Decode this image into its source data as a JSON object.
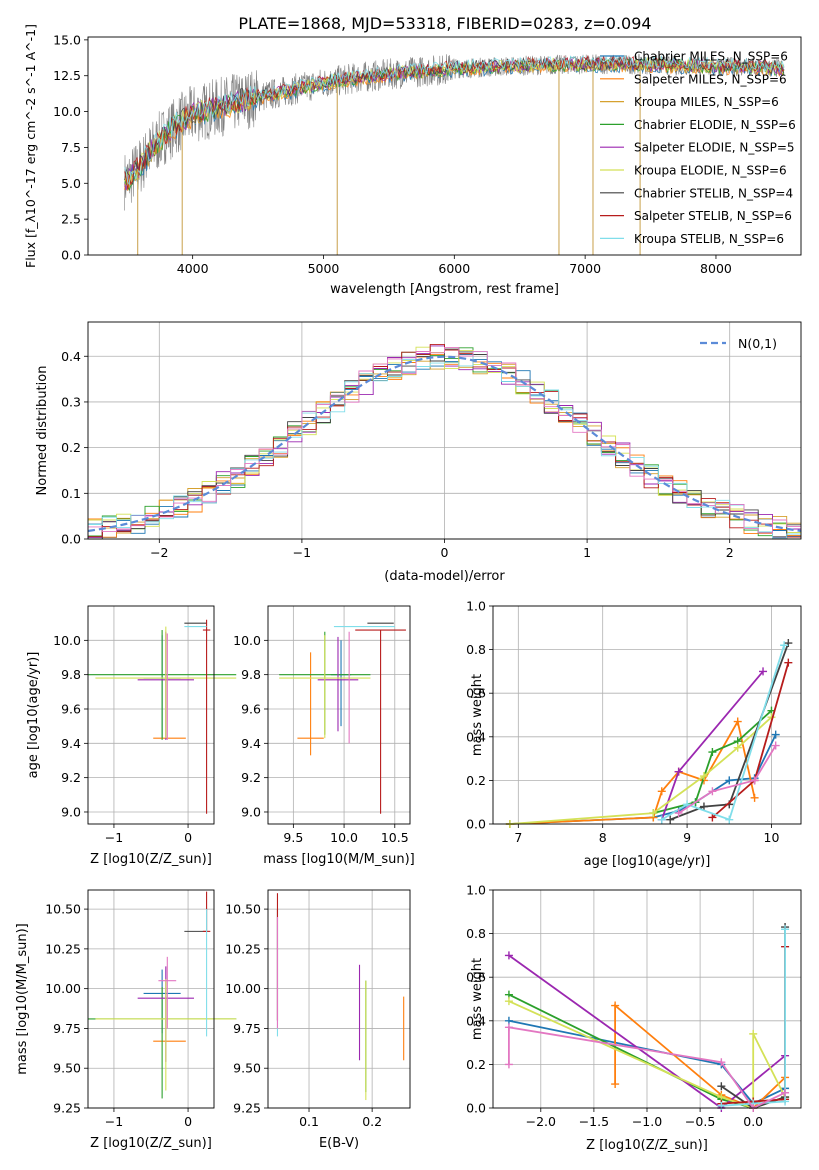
{
  "figure_title": "PLATE=1868, MJD=53318, FIBERID=0283, z=0.094",
  "colors": {
    "chabrier_miles": "#1f77b4",
    "salpeter_miles": "#ff7f0e",
    "kroupa_miles": "#d6a12f",
    "chabrier_elodie": "#2ca02c",
    "salpeter_elodie": "#9b27b0",
    "kroupa_elodie": "#d4e157",
    "chabrier_stelib": "#424242",
    "salpeter_stelib": "#b71c1c",
    "kroupa_stelib": "#80deea",
    "pink": "#e377c2",
    "blue_line": "#5b8bd8",
    "gray_spec": "#808080"
  },
  "chart_data": [
    {
      "id": "spectrum",
      "type": "line",
      "xlabel": "wavelength [Angstrom, rest frame]",
      "ylabel": "Flux [f_λ10^-17 erg cm^-2 s^-1 A^-1]",
      "xlim": [
        3200,
        8650
      ],
      "ylim": [
        0,
        15.2
      ],
      "xticks": [
        4000,
        5000,
        6000,
        7000,
        8000
      ],
      "yticks": [
        0.0,
        2.5,
        5.0,
        7.5,
        10.0,
        12.5,
        15.0
      ],
      "grid": false,
      "legend_position": "right",
      "legend": [
        {
          "label": "Chabrier MILES, N_SSP=6",
          "color": "#1f77b4"
        },
        {
          "label": "Salpeter MILES, N_SSP=6",
          "color": "#ff7f0e"
        },
        {
          "label": "Kroupa MILES, N_SSP=6",
          "color": "#d6a12f"
        },
        {
          "label": "Chabrier ELODIE, N_SSP=6",
          "color": "#2ca02c"
        },
        {
          "label": "Salpeter ELODIE, N_SSP=5",
          "color": "#9b27b0"
        },
        {
          "label": "Kroupa ELODIE, N_SSP=6",
          "color": "#d4e157"
        },
        {
          "label": "Chabrier STELIB, N_SSP=4",
          "color": "#424242"
        },
        {
          "label": "Salpeter STELIB, N_SSP=6",
          "color": "#b71c1c"
        },
        {
          "label": "Kroupa STELIB, N_SSP=6",
          "color": "#80deea"
        }
      ],
      "continuum": {
        "x": [
          3500,
          3600,
          3700,
          3800,
          3900,
          4000,
          4200,
          4400,
          4600,
          4800,
          5000,
          5300,
          5600,
          6000,
          6500,
          7000,
          7400,
          7800,
          8200,
          8500
        ],
        "y": [
          5.2,
          6.2,
          7.5,
          8.5,
          9.2,
          9.8,
          10.3,
          10.8,
          11.2,
          11.6,
          12.0,
          12.4,
          12.7,
          13.0,
          13.2,
          13.3,
          13.3,
          13.2,
          13.1,
          13.0
        ]
      },
      "dips": [
        {
          "x": 3580,
          "y": 0.0
        },
        {
          "x": 3920,
          "y": 0.0
        },
        {
          "x": 5105,
          "y": 0.0
        },
        {
          "x": 6800,
          "y": 0.0
        },
        {
          "x": 7060,
          "y": 0.0
        },
        {
          "x": 7420,
          "y": 0.0
        }
      ]
    },
    {
      "id": "residual-histogram",
      "type": "bar",
      "xlabel": "(data-model)/error",
      "ylabel": "Normed distribution",
      "xlim": [
        -2.5,
        2.5
      ],
      "ylim": [
        0,
        0.475
      ],
      "xticks": [
        -2,
        -1,
        0,
        1,
        2
      ],
      "yticks": [
        0.0,
        0.1,
        0.2,
        0.3,
        0.4
      ],
      "grid": true,
      "legend_position": "top-right",
      "legend": [
        {
          "label": "N(0,1)",
          "color": "#5b8bd8",
          "style": "dashed"
        }
      ],
      "bin_width": 0.1
    },
    {
      "id": "age-vs-Z",
      "type": "scatter",
      "xlabel": "Z [log10(Z/Z_sun)]",
      "ylabel": "age [log10(age/yr)]",
      "xlim": [
        -1.35,
        0.35
      ],
      "ylim": [
        8.93,
        10.2
      ],
      "xticks": [
        -1,
        0
      ],
      "yticks": [
        9.0,
        9.2,
        9.4,
        9.6,
        9.8,
        10.0
      ],
      "grid": true,
      "points": [
        {
          "series": "Chabrier MILES",
          "x": -0.35,
          "y": 9.78,
          "xerr": 0.25,
          "yerr": [
            0.35,
            0.25
          ],
          "color": "#1f77b4"
        },
        {
          "series": "Salpeter MILES",
          "x": -0.25,
          "y": 9.43,
          "xerr": 0.22,
          "yerr": [
            0.0,
            0.0
          ],
          "color": "#ff7f0e"
        },
        {
          "series": "Chabrier ELODIE",
          "x": -0.35,
          "y": 9.8,
          "xerr": 1.0,
          "yerr": [
            0.38,
            0.26
          ],
          "color": "#2ca02c"
        },
        {
          "series": "Salpeter ELODIE",
          "x": -0.3,
          "y": 9.77,
          "xerr": 0.38,
          "yerr": [
            0.35,
            0.28
          ],
          "color": "#9b27b0"
        },
        {
          "series": "Kroupa ELODIE",
          "x": -0.3,
          "y": 9.78,
          "xerr": 0.95,
          "yerr": [
            0.35,
            0.3
          ],
          "color": "#d4e157"
        },
        {
          "series": "Chabrier STELIB",
          "x": 0.1,
          "y": 10.1,
          "xerr": 0.15,
          "yerr": [
            0.0,
            0.0
          ],
          "color": "#424242"
        },
        {
          "series": "Salpeter STELIB",
          "x": 0.25,
          "y": 10.06,
          "xerr": 0.05,
          "yerr": [
            1.07,
            0.06
          ],
          "color": "#b71c1c"
        },
        {
          "series": "Kroupa STELIB",
          "x": 0.1,
          "y": 10.08,
          "xerr": 0.15,
          "yerr": [
            0.0,
            0.0
          ],
          "color": "#80deea"
        },
        {
          "series": "pink",
          "x": -0.28,
          "y": 9.8,
          "xerr": 0.0,
          "yerr": [
            0.38,
            0.24
          ],
          "color": "#e377c2"
        }
      ]
    },
    {
      "id": "age-vs-mass",
      "type": "scatter",
      "xlabel": "mass [log10(M/M_sun)]",
      "ylabel": "",
      "xlim": [
        9.25,
        10.65
      ],
      "ylim": [
        8.93,
        10.2
      ],
      "xticks": [
        9.5,
        10.0,
        10.5
      ],
      "yticks": [
        9.0,
        9.2,
        9.4,
        9.6,
        9.8,
        10.0
      ],
      "grid": true,
      "points": [
        {
          "series": "Chabrier MILES",
          "x": 9.97,
          "y": 9.8,
          "xerr": 0.1,
          "yerr": [
            0.3,
            0.2
          ],
          "color": "#1f77b4"
        },
        {
          "series": "Salpeter MILES",
          "x": 9.67,
          "y": 9.43,
          "xerr": 0.13,
          "yerr": [
            0.1,
            0.5
          ],
          "color": "#ff7f0e"
        },
        {
          "series": "Chabrier ELODIE",
          "x": 9.81,
          "y": 9.8,
          "xerr": 0.45,
          "yerr": [
            0.35,
            0.25
          ],
          "color": "#2ca02c"
        },
        {
          "series": "Salpeter ELODIE",
          "x": 9.94,
          "y": 9.77,
          "xerr": 0.2,
          "yerr": [
            0.3,
            0.25
          ],
          "color": "#9b27b0"
        },
        {
          "series": "Kroupa ELODIE",
          "x": 9.81,
          "y": 9.78,
          "xerr": 0.45,
          "yerr": [
            0.35,
            0.25
          ],
          "color": "#d4e157"
        },
        {
          "series": "Chabrier STELIB",
          "x": 10.36,
          "y": 10.1,
          "xerr": 0.13,
          "yerr": [
            0.0,
            0.0
          ],
          "color": "#424242"
        },
        {
          "series": "Salpeter STELIB",
          "x": 10.36,
          "y": 10.06,
          "xerr": 0.25,
          "yerr": [
            1.07,
            0.0
          ],
          "color": "#b71c1c"
        },
        {
          "series": "Kroupa STELIB",
          "x": 10.2,
          "y": 10.08,
          "xerr": 0.3,
          "yerr": [
            0.0,
            0.0
          ],
          "color": "#80deea"
        },
        {
          "series": "pink",
          "x": 10.05,
          "y": 9.8,
          "xerr": 0.0,
          "yerr": [
            0.4,
            0.25
          ],
          "color": "#e377c2"
        }
      ]
    },
    {
      "id": "massweight-vs-age",
      "type": "line",
      "xlabel": "age [log10(age/yr)]",
      "ylabel": "mass weight",
      "xlim": [
        6.7,
        10.35
      ],
      "ylim": [
        0,
        1.0
      ],
      "xticks": [
        7,
        8,
        9,
        10
      ],
      "yticks": [
        0.0,
        0.2,
        0.4,
        0.6,
        0.8,
        1.0
      ],
      "grid": true,
      "series": [
        {
          "name": "Chabrier MILES",
          "color": "#1f77b4",
          "x": [
            6.9,
            8.6,
            8.9,
            9.1,
            9.5,
            9.8,
            10.05
          ],
          "y": [
            0.0,
            0.03,
            0.06,
            0.1,
            0.2,
            0.21,
            0.41
          ]
        },
        {
          "name": "Salpeter MILES",
          "color": "#ff7f0e",
          "x": [
            6.9,
            8.6,
            8.7,
            8.9,
            9.2,
            9.6,
            9.8
          ],
          "y": [
            0.0,
            0.03,
            0.15,
            0.24,
            0.2,
            0.47,
            0.12
          ]
        },
        {
          "name": "Chabrier ELODIE",
          "color": "#2ca02c",
          "x": [
            8.6,
            9.1,
            9.3,
            9.6,
            10.0
          ],
          "y": [
            0.05,
            0.1,
            0.33,
            0.38,
            0.52
          ]
        },
        {
          "name": "Salpeter ELODIE",
          "color": "#9b27b0",
          "x": [
            8.7,
            8.9,
            9.9
          ],
          "y": [
            0.02,
            0.24,
            0.7
          ]
        },
        {
          "name": "Kroupa ELODIE",
          "color": "#d4e157",
          "x": [
            6.9,
            8.6,
            9.2,
            9.6,
            10.0
          ],
          "y": [
            0.0,
            0.05,
            0.22,
            0.35,
            0.49
          ]
        },
        {
          "name": "Chabrier STELIB",
          "color": "#424242",
          "x": [
            8.8,
            9.2,
            9.5,
            10.2
          ],
          "y": [
            0.02,
            0.08,
            0.09,
            0.83
          ]
        },
        {
          "name": "Salpeter STELIB",
          "color": "#b71c1c",
          "x": [
            9.3,
            9.8,
            10.2
          ],
          "y": [
            0.03,
            0.2,
            0.74
          ]
        },
        {
          "name": "Kroupa STELIB",
          "color": "#80deea",
          "x": [
            8.7,
            9.0,
            9.5,
            10.15
          ],
          "y": [
            0.02,
            0.09,
            0.02,
            0.82
          ]
        },
        {
          "name": "pink",
          "color": "#e377c2",
          "x": [
            8.9,
            9.3,
            9.8,
            10.05
          ],
          "y": [
            0.05,
            0.15,
            0.2,
            0.36
          ]
        }
      ]
    },
    {
      "id": "mass-vs-Z",
      "type": "scatter",
      "xlabel": "Z [log10(Z/Z_sun)]",
      "ylabel": "mass [log10(M/M_sun)]",
      "xlim": [
        -1.35,
        0.35
      ],
      "ylim": [
        9.25,
        10.62
      ],
      "xticks": [
        -1,
        0
      ],
      "yticks": [
        9.25,
        9.5,
        9.75,
        10.0,
        10.25,
        10.5
      ],
      "grid": true,
      "points": [
        {
          "series": "Chabrier MILES",
          "x": -0.35,
          "y": 9.97,
          "xerr": 0.25,
          "yerr": [
            0.25,
            0.15
          ],
          "color": "#1f77b4"
        },
        {
          "series": "Salpeter MILES",
          "x": -0.25,
          "y": 9.67,
          "xerr": 0.22,
          "yerr": [
            0.0,
            0.0
          ],
          "color": "#ff7f0e"
        },
        {
          "series": "Chabrier ELODIE",
          "x": -0.35,
          "y": 9.81,
          "xerr": 1.0,
          "yerr": [
            0.5,
            0.2
          ],
          "color": "#2ca02c"
        },
        {
          "series": "Salpeter ELODIE",
          "x": -0.3,
          "y": 9.94,
          "xerr": 0.38,
          "yerr": [
            0.4,
            0.2
          ],
          "color": "#9b27b0"
        },
        {
          "series": "Kroupa ELODIE",
          "x": -0.3,
          "y": 9.81,
          "xerr": 0.95,
          "yerr": [
            0.45,
            0.25
          ],
          "color": "#d4e157"
        },
        {
          "series": "Chabrier STELIB",
          "x": 0.1,
          "y": 10.36,
          "xerr": 0.15,
          "yerr": [
            0.0,
            0.0
          ],
          "color": "#424242"
        },
        {
          "series": "Salpeter STELIB",
          "x": 0.25,
          "y": 10.36,
          "xerr": 0.05,
          "yerr": [
            0.0,
            0.25
          ],
          "color": "#b71c1c"
        },
        {
          "series": "Kroupa STELIB",
          "x": 0.25,
          "y": 10.2,
          "xerr": 0.0,
          "yerr": [
            0.5,
            0.3
          ],
          "color": "#80deea"
        },
        {
          "series": "pink",
          "x": -0.28,
          "y": 10.05,
          "xerr": 0.12,
          "yerr": [
            0.3,
            0.15
          ],
          "color": "#e377c2"
        }
      ]
    },
    {
      "id": "mass-vs-EBV",
      "type": "scatter",
      "xlabel": "E(B-V)",
      "ylabel": "",
      "xlim": [
        0.035,
        0.26
      ],
      "ylim": [
        9.25,
        10.62
      ],
      "xticks": [
        0.1,
        0.2
      ],
      "yticks": [
        9.25,
        9.5,
        9.75,
        10.0,
        10.25,
        10.5
      ],
      "grid": true,
      "points": [
        {
          "series": "Salpeter MILES",
          "x": 0.25,
          "y": 9.75,
          "yerr": [
            0.2,
            0.2
          ],
          "color": "#ff7f0e"
        },
        {
          "series": "Chabrier ELODIE",
          "x": 0.19,
          "y": 9.75,
          "yerr": [
            0.4,
            0.3
          ],
          "color": "#2ca02c"
        },
        {
          "series": "Salpeter ELODIE",
          "x": 0.18,
          "y": 9.9,
          "yerr": [
            0.35,
            0.25
          ],
          "color": "#9b27b0"
        },
        {
          "series": "Kroupa ELODIE",
          "x": 0.19,
          "y": 9.7,
          "yerr": [
            0.4,
            0.35
          ],
          "color": "#d4e157"
        },
        {
          "series": "Chabrier STELIB",
          "x": 0.05,
          "y": 10.1,
          "yerr": [
            0.3,
            0.4
          ],
          "color": "#424242"
        },
        {
          "series": "Salpeter STELIB",
          "x": 0.05,
          "y": 10.2,
          "yerr": [
            0.4,
            0.4
          ],
          "color": "#b71c1c"
        },
        {
          "series": "Kroupa STELIB",
          "x": 0.05,
          "y": 10.0,
          "yerr": [
            0.3,
            0.4
          ],
          "color": "#80deea"
        },
        {
          "series": "pink",
          "x": 0.05,
          "y": 10.05,
          "yerr": [
            0.3,
            0.4
          ],
          "color": "#e377c2"
        }
      ]
    },
    {
      "id": "massweight-vs-Z",
      "type": "line",
      "xlabel": "Z [log10(Z/Z_sun)]",
      "ylabel": "mass weight",
      "xlim": [
        -2.45,
        0.45
      ],
      "ylim": [
        0,
        1.0
      ],
      "xticks": [
        -2.0,
        -1.5,
        -1.0,
        -0.5,
        0.0
      ],
      "yticks": [
        0.0,
        0.2,
        0.4,
        0.6,
        0.8,
        1.0
      ],
      "grid": true,
      "series": [
        {
          "name": "Chabrier MILES",
          "color": "#1f77b4",
          "x": [
            -2.3,
            -0.3,
            0.0,
            0.3
          ],
          "y": [
            0.4,
            0.2,
            0.02,
            0.09
          ]
        },
        {
          "name": "Salpeter MILES",
          "color": "#ff7f0e",
          "x": [
            -1.3,
            -1.3,
            -0.3,
            0.0,
            0.3
          ],
          "y": [
            0.11,
            0.47,
            0.06,
            0.0,
            0.14
          ]
        },
        {
          "name": "Chabrier ELODIE",
          "color": "#2ca02c",
          "x": [
            -2.3,
            -0.3,
            0.0,
            0.3
          ],
          "y": [
            0.52,
            0.04,
            0.0,
            0.05
          ]
        },
        {
          "name": "Salpeter ELODIE",
          "color": "#9b27b0",
          "x": [
            -2.3,
            -0.3,
            0.3
          ],
          "y": [
            0.7,
            0.0,
            0.24
          ]
        },
        {
          "name": "Kroupa ELODIE",
          "color": "#d4e157",
          "x": [
            -2.3,
            -0.3,
            0.0,
            0.0,
            0.3
          ],
          "y": [
            0.49,
            0.05,
            0.0,
            0.34,
            0.05
          ]
        },
        {
          "name": "Chabrier STELIB",
          "color": "#424242",
          "x": [
            -0.3,
            0.0,
            0.3,
            0.3
          ],
          "y": [
            0.1,
            0.0,
            0.05,
            0.83
          ]
        },
        {
          "name": "Salpeter STELIB",
          "color": "#b71c1c",
          "x": [
            -0.3,
            0.0,
            0.3,
            0.3
          ],
          "y": [
            0.02,
            0.03,
            0.04,
            0.74
          ]
        },
        {
          "name": "Kroupa STELIB",
          "color": "#80deea",
          "x": [
            -0.3,
            0.0,
            0.3,
            0.3
          ],
          "y": [
            0.01,
            0.02,
            0.03,
            0.82
          ]
        },
        {
          "name": "pink",
          "color": "#e377c2",
          "x": [
            -2.3,
            -2.3,
            -0.3,
            0.0,
            0.3
          ],
          "y": [
            0.2,
            0.37,
            0.21,
            0.0,
            0.07
          ]
        }
      ]
    }
  ]
}
